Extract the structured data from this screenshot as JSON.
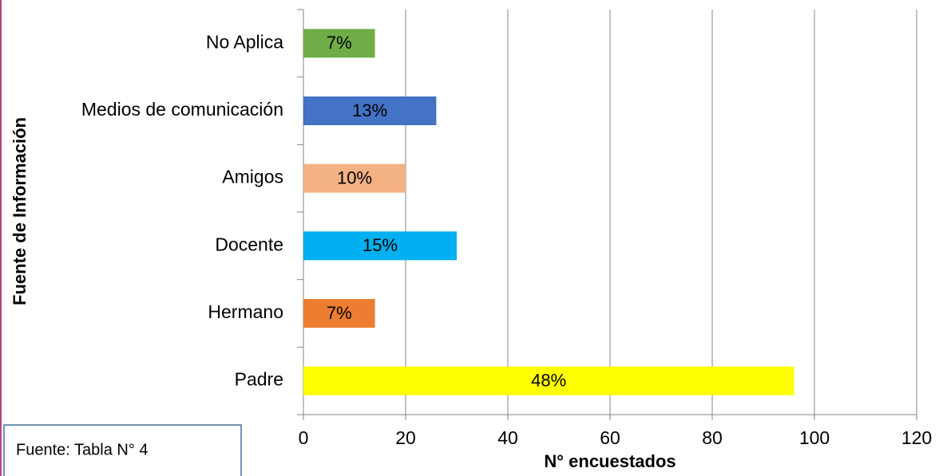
{
  "chart_data": {
    "type": "bar",
    "orientation": "horizontal",
    "categories": [
      "No Aplica",
      "Medios de comunicación",
      "Amigos",
      "Docente",
      "Hermano",
      "Padre"
    ],
    "values": [
      14,
      26,
      20,
      30,
      14,
      96
    ],
    "value_labels": [
      "7%",
      "13%",
      "10%",
      "15%",
      "7%",
      "48%"
    ],
    "colors": [
      "#70ad47",
      "#4472c4",
      "#f4b183",
      "#00b0f0",
      "#ed7d31",
      "#ffff00"
    ],
    "xlim": [
      0,
      120
    ],
    "xticks": [
      0,
      20,
      40,
      60,
      80,
      100,
      120
    ],
    "grid": true,
    "x_label": "N° encuestados",
    "y_label": "Fuente de Información"
  },
  "note_box": "Fuente: Tabla  N° 4"
}
